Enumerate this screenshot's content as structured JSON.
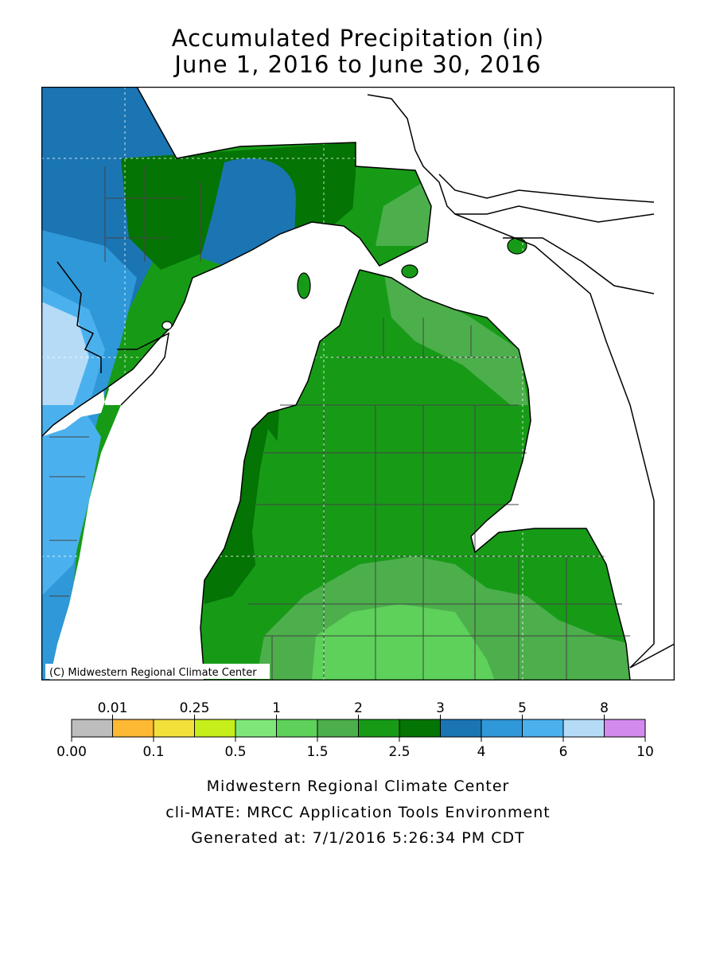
{
  "title": "Accumulated Precipitation (in)",
  "subtitle": "June 1, 2016 to June 30, 2016",
  "copyright": "(C) Midwestern Regional Climate Center",
  "legend": {
    "top_labels": [
      "0.01",
      "0.25",
      "1",
      "2",
      "3",
      "5",
      "8"
    ],
    "bottom_labels": [
      "0.00",
      "0.1",
      "0.5",
      "1.5",
      "2.5",
      "4",
      "6",
      "10"
    ],
    "bins": [
      {
        "range": "0.00-0.01",
        "color": "#bdbdbd"
      },
      {
        "range": "0.01-0.1",
        "color": "#fdb933"
      },
      {
        "range": "0.1-0.25",
        "color": "#f3e03b"
      },
      {
        "range": "0.25-0.5",
        "color": "#c6ee1a"
      },
      {
        "range": "0.5-1",
        "color": "#7fe77a"
      },
      {
        "range": "1-1.5",
        "color": "#5dd15a"
      },
      {
        "range": "1.5-2",
        "color": "#4caf4c"
      },
      {
        "range": "2-2.5",
        "color": "#179b17"
      },
      {
        "range": "2.5-3",
        "color": "#047404"
      },
      {
        "range": "3-4",
        "color": "#1b75b3"
      },
      {
        "range": "4-5",
        "color": "#2f98d8"
      },
      {
        "range": "5-6",
        "color": "#4bb1ee"
      },
      {
        "range": "6-8",
        "color": "#b5dbf7"
      },
      {
        "range": "8-10",
        "color": "#d38aed"
      }
    ]
  },
  "footer": {
    "line1": "Midwestern Regional Climate Center",
    "line2": "cli-MATE: MRCC Application Tools Environment",
    "line3": "Generated at: 7/1/2016 5:26:34 PM CDT"
  },
  "colors": {
    "water": "#ffffff",
    "county_lines": "#444444",
    "coastline": "#000000",
    "grid": "#ffffff"
  }
}
